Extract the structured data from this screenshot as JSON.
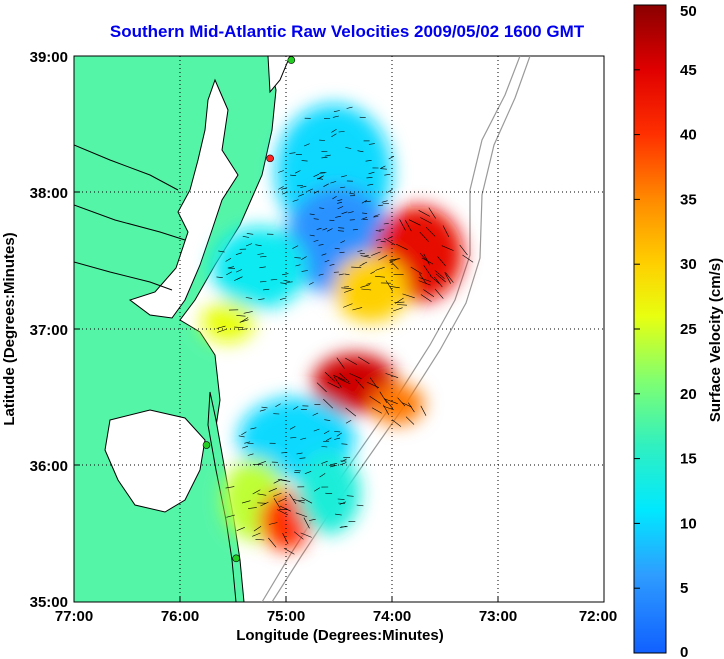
{
  "title": "Southern Mid-Atlantic Raw Velocities 2009/05/02 1600 GMT",
  "x_axis": {
    "label": "Longitude (Degrees:Minutes)",
    "ticks": [
      "77:00",
      "76:00",
      "75:00",
      "74:00",
      "73:00",
      "72:00"
    ]
  },
  "y_axis": {
    "label": "Latitude (Degrees:Minutes)",
    "ticks": [
      "39:00",
      "38:00",
      "37:00",
      "36:00",
      "35:00"
    ]
  },
  "colorbar": {
    "label": "Surface Velocity (cm/s)",
    "ticks": [
      "0",
      "5",
      "10",
      "15",
      "20",
      "25",
      "30",
      "35",
      "40",
      "45",
      "50"
    ],
    "min": 0,
    "max": 50
  },
  "colors": {
    "land": "#55f5a8",
    "water": "#ffffff",
    "coastline": "#000000",
    "bathymetry": "#9a9a9a",
    "station": "#22cc22",
    "station_alt": "#ff2222"
  },
  "extent": {
    "lon": [
      -77,
      -72
    ],
    "lat": [
      35,
      39
    ]
  },
  "grid": true,
  "stations": [
    {
      "lon": -74.95,
      "lat": 38.97,
      "kind": "green"
    },
    {
      "lon": -75.15,
      "lat": 38.25,
      "kind": "red"
    },
    {
      "lon": -75.75,
      "lat": 36.15,
      "kind": "green"
    },
    {
      "lon": -75.47,
      "lat": 35.32,
      "kind": "green"
    }
  ],
  "velocity_regions": [
    {
      "lon": -74.55,
      "lat": 38.15,
      "rx": 0.55,
      "ry": 0.5,
      "speed": 10
    },
    {
      "lon": -74.5,
      "lat": 37.65,
      "rx": 0.5,
      "ry": 0.4,
      "speed": 5
    },
    {
      "lon": -75.25,
      "lat": 37.45,
      "rx": 0.45,
      "ry": 0.3,
      "speed": 12
    },
    {
      "lon": -73.75,
      "lat": 37.55,
      "rx": 0.42,
      "ry": 0.35,
      "speed": 44
    },
    {
      "lon": -74.2,
      "lat": 37.3,
      "rx": 0.35,
      "ry": 0.25,
      "speed": 30
    },
    {
      "lon": -75.55,
      "lat": 37.05,
      "rx": 0.25,
      "ry": 0.15,
      "speed": 26
    },
    {
      "lon": -74.35,
      "lat": 36.6,
      "rx": 0.4,
      "ry": 0.22,
      "speed": 46
    },
    {
      "lon": -73.95,
      "lat": 36.45,
      "rx": 0.25,
      "ry": 0.15,
      "speed": 36
    },
    {
      "lon": -74.9,
      "lat": 36.2,
      "rx": 0.55,
      "ry": 0.3,
      "speed": 10
    },
    {
      "lon": -75.3,
      "lat": 35.75,
      "rx": 0.3,
      "ry": 0.3,
      "speed": 24
    },
    {
      "lon": -75.0,
      "lat": 35.6,
      "rx": 0.25,
      "ry": 0.22,
      "speed": 40
    },
    {
      "lon": -74.6,
      "lat": 35.8,
      "rx": 0.3,
      "ry": 0.3,
      "speed": 14
    }
  ]
}
